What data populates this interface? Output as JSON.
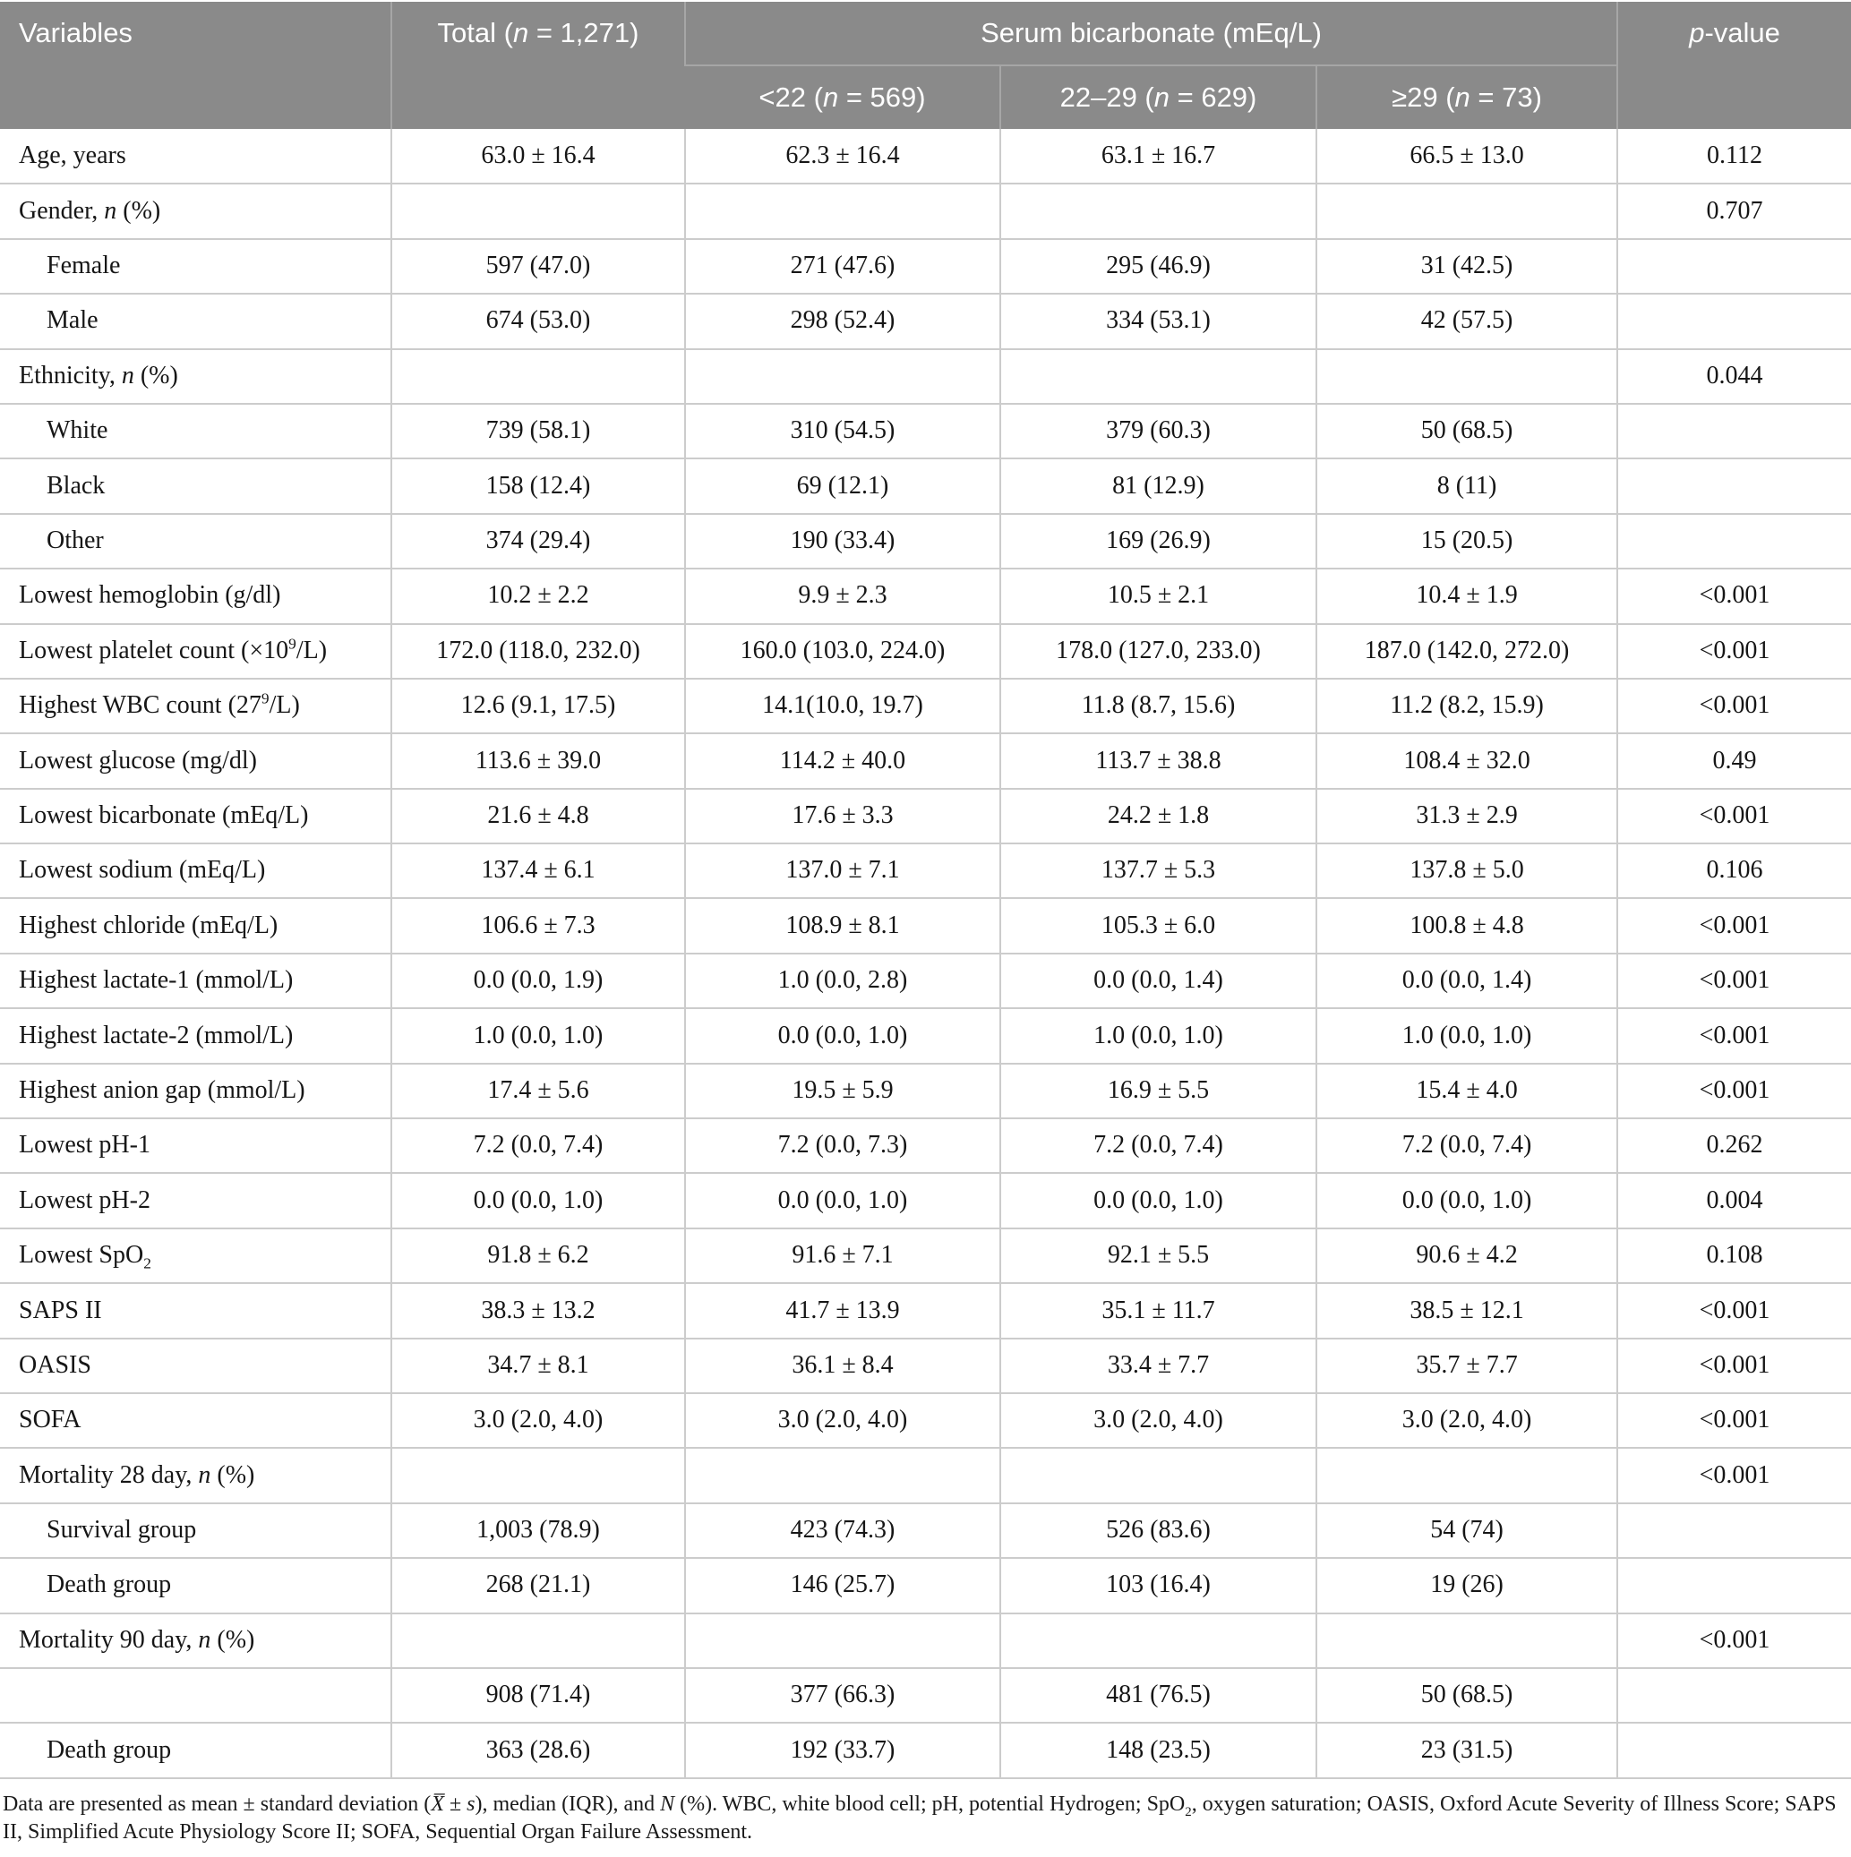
{
  "table": {
    "header": {
      "variables": "Variables",
      "total": "Total (*n* = 1,271)",
      "group": "Serum bicarbonate (mEq/L)",
      "subgroups": [
        "<22 (*n* = 569)",
        "22–29 (*n* = 629)",
        "≥29 (*n* = 73)"
      ],
      "p_value": "*p*-value"
    },
    "rows": [
      {
        "label": "Age, years",
        "indent": false,
        "total": "63.0 ± 16.4",
        "lt22": "62.3 ± 16.4",
        "b2229": "63.1 ± 16.7",
        "ge29": "66.5 ± 13.0",
        "p": "0.112"
      },
      {
        "label": "Gender, *n* (%)",
        "indent": false,
        "total": "",
        "lt22": "",
        "b2229": "",
        "ge29": "",
        "p": "0.707"
      },
      {
        "label": "Female",
        "indent": true,
        "total": "597 (47.0)",
        "lt22": "271 (47.6)",
        "b2229": "295 (46.9)",
        "ge29": "31 (42.5)",
        "p": ""
      },
      {
        "label": "Male",
        "indent": true,
        "total": "674 (53.0)",
        "lt22": "298 (52.4)",
        "b2229": "334 (53.1)",
        "ge29": "42 (57.5)",
        "p": ""
      },
      {
        "label": "Ethnicity, *n* (%)",
        "indent": false,
        "total": "",
        "lt22": "",
        "b2229": "",
        "ge29": "",
        "p": "0.044"
      },
      {
        "label": "White",
        "indent": true,
        "total": "739 (58.1)",
        "lt22": "310 (54.5)",
        "b2229": "379 (60.3)",
        "ge29": "50 (68.5)",
        "p": ""
      },
      {
        "label": "Black",
        "indent": true,
        "total": "158 (12.4)",
        "lt22": "69 (12.1)",
        "b2229": "81 (12.9)",
        "ge29": "8 (11)",
        "p": ""
      },
      {
        "label": "Other",
        "indent": true,
        "total": "374 (29.4)",
        "lt22": "190 (33.4)",
        "b2229": "169 (26.9)",
        "ge29": "15 (20.5)",
        "p": ""
      },
      {
        "label": "Lowest hemoglobin (g/dl)",
        "indent": false,
        "total": "10.2 ± 2.2",
        "lt22": "9.9 ± 2.3",
        "b2229": "10.5 ± 2.1",
        "ge29": "10.4 ± 1.9",
        "p": "<0.001"
      },
      {
        "label": "Lowest platelet count (×10^9^/L)",
        "indent": false,
        "total": "172.0 (118.0, 232.0)",
        "lt22": "160.0 (103.0, 224.0)",
        "b2229": "178.0 (127.0, 233.0)",
        "ge29": "187.0 (142.0, 272.0)",
        "p": "<0.001"
      },
      {
        "label": "Highest WBC count (27^9^/L)",
        "indent": false,
        "total": "12.6 (9.1, 17.5)",
        "lt22": "14.1(10.0, 19.7)",
        "b2229": "11.8 (8.7, 15.6)",
        "ge29": "11.2 (8.2, 15.9)",
        "p": "<0.001"
      },
      {
        "label": "Lowest glucose (mg/dl)",
        "indent": false,
        "total": "113.6 ± 39.0",
        "lt22": "114.2 ± 40.0",
        "b2229": "113.7 ± 38.8",
        "ge29": "108.4 ± 32.0",
        "p": "0.49"
      },
      {
        "label": "Lowest bicarbonate (mEq/L)",
        "indent": false,
        "total": "21.6 ± 4.8",
        "lt22": "17.6 ± 3.3",
        "b2229": "24.2 ± 1.8",
        "ge29": "31.3 ± 2.9",
        "p": "<0.001"
      },
      {
        "label": "Lowest sodium (mEq/L)",
        "indent": false,
        "total": "137.4 ± 6.1",
        "lt22": "137.0 ± 7.1",
        "b2229": "137.7 ± 5.3",
        "ge29": "137.8 ± 5.0",
        "p": "0.106"
      },
      {
        "label": "Highest chloride (mEq/L)",
        "indent": false,
        "total": "106.6 ± 7.3",
        "lt22": "108.9 ± 8.1",
        "b2229": "105.3 ± 6.0",
        "ge29": "100.8 ± 4.8",
        "p": "<0.001"
      },
      {
        "label": "Highest lactate-1 (mmol/L)",
        "indent": false,
        "total": "0.0 (0.0, 1.9)",
        "lt22": "1.0 (0.0, 2.8)",
        "b2229": "0.0 (0.0, 1.4)",
        "ge29": "0.0 (0.0, 1.4)",
        "p": "<0.001"
      },
      {
        "label": "Highest lactate-2 (mmol/L)",
        "indent": false,
        "total": "1.0 (0.0, 1.0)",
        "lt22": "0.0 (0.0, 1.0)",
        "b2229": "1.0 (0.0, 1.0)",
        "ge29": "1.0 (0.0, 1.0)",
        "p": "<0.001"
      },
      {
        "label": "Highest anion gap (mmol/L)",
        "indent": false,
        "total": "17.4 ± 5.6",
        "lt22": "19.5 ± 5.9",
        "b2229": "16.9 ± 5.5",
        "ge29": "15.4 ± 4.0",
        "p": "<0.001"
      },
      {
        "label": "Lowest pH-1",
        "indent": false,
        "total": "7.2 (0.0, 7.4)",
        "lt22": "7.2 (0.0, 7.3)",
        "b2229": "7.2 (0.0, 7.4)",
        "ge29": "7.2 (0.0, 7.4)",
        "p": "0.262"
      },
      {
        "label": "Lowest pH-2",
        "indent": false,
        "total": "0.0 (0.0, 1.0)",
        "lt22": "0.0 (0.0, 1.0)",
        "b2229": "0.0 (0.0, 1.0)",
        "ge29": "0.0 (0.0, 1.0)",
        "p": "0.004"
      },
      {
        "label": "Lowest SpO~2~",
        "indent": false,
        "total": "91.8 ± 6.2",
        "lt22": "91.6 ± 7.1",
        "b2229": "92.1 ± 5.5",
        "ge29": "90.6 ± 4.2",
        "p": "0.108"
      },
      {
        "label": "SAPS II",
        "indent": false,
        "total": "38.3 ± 13.2",
        "lt22": "41.7 ± 13.9",
        "b2229": "35.1 ± 11.7",
        "ge29": "38.5 ± 12.1",
        "p": "<0.001"
      },
      {
        "label": "OASIS",
        "indent": false,
        "total": "34.7 ± 8.1",
        "lt22": "36.1 ± 8.4",
        "b2229": "33.4 ± 7.7",
        "ge29": "35.7 ± 7.7",
        "p": "<0.001"
      },
      {
        "label": "SOFA",
        "indent": false,
        "total": "3.0 (2.0, 4.0)",
        "lt22": "3.0 (2.0, 4.0)",
        "b2229": "3.0 (2.0, 4.0)",
        "ge29": "3.0 (2.0, 4.0)",
        "p": "<0.001"
      },
      {
        "label": "Mortality 28 day, *n* (%)",
        "indent": false,
        "total": "",
        "lt22": "",
        "b2229": "",
        "ge29": "",
        "p": "<0.001"
      },
      {
        "label": "Survival group",
        "indent": true,
        "total": "1,003 (78.9)",
        "lt22": "423 (74.3)",
        "b2229": "526 (83.6)",
        "ge29": "54 (74)",
        "p": ""
      },
      {
        "label": "Death group",
        "indent": true,
        "total": "268 (21.1)",
        "lt22": "146 (25.7)",
        "b2229": "103 (16.4)",
        "ge29": "19 (26)",
        "p": ""
      },
      {
        "label": "Mortality 90 day, *n* (%)",
        "indent": false,
        "total": "",
        "lt22": "",
        "b2229": "",
        "ge29": "",
        "p": "<0.001"
      },
      {
        "label": "",
        "indent": true,
        "total": "908 (71.4)",
        "lt22": "377 (66.3)",
        "b2229": "481 (76.5)",
        "ge29": "50 (68.5)",
        "p": ""
      },
      {
        "label": "Death group",
        "indent": true,
        "total": "363 (28.6)",
        "lt22": "192 (33.7)",
        "b2229": "148 (23.5)",
        "ge29": "23 (31.5)",
        "p": ""
      }
    ]
  },
  "footnote": "Data are presented as mean ± standard deviation (*X̅* ± *s*), median (IQR), and *N* (%). WBC, white blood cell; pH, potential Hydrogen; SpO~2~, oxygen saturation; OASIS, Oxford Acute Severity of Illness Score; SAPS II, Simplified Acute Physiology Score II; SOFA, Sequential Organ Failure Assessment.",
  "colors": {
    "header_background": "#8a8a8a",
    "header_text": "#ffffff",
    "grid_line": "#cccccc",
    "header_separator": "#a6a6a6"
  }
}
